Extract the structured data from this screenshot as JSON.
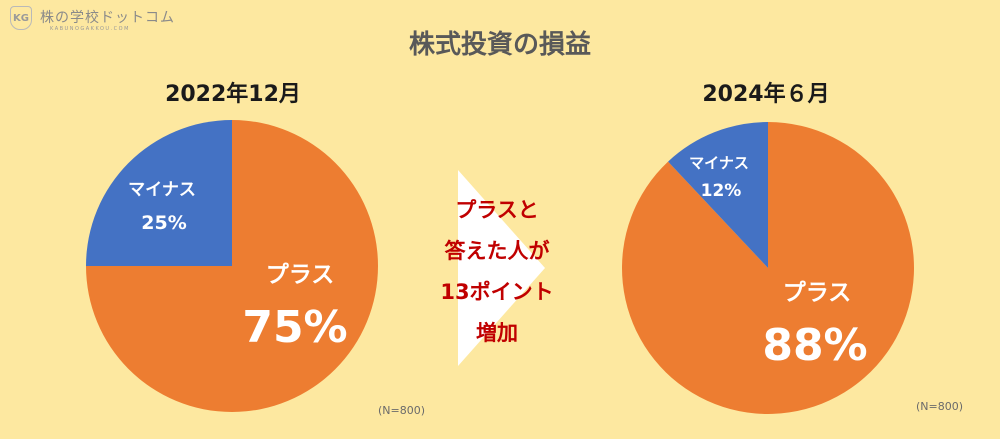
{
  "logo": {
    "name": "株の学校ドットコム",
    "subtitle": "KABUNOGAKKOU.COM",
    "mark": "KG"
  },
  "title": "株式投資の損益",
  "middle_text": [
    "プラスと",
    "答えた人が",
    "13ポイント",
    "増加"
  ],
  "colors": {
    "background": "#FDE8A0",
    "plus": "#ED7D31",
    "minus": "#4472C4",
    "arrow": "#FFFFFF",
    "middle_text": "#C00000"
  },
  "chart_data": [
    {
      "type": "pie",
      "title": "2022年12月",
      "categories": [
        "プラス",
        "マイナス"
      ],
      "values": [
        75,
        25
      ],
      "value_labels": [
        "75%",
        "25%"
      ],
      "note": "(N=800)"
    },
    {
      "type": "pie",
      "title": "2024年６月",
      "categories": [
        "プラス",
        "マイナス"
      ],
      "values": [
        88,
        12
      ],
      "value_labels": [
        "88%",
        "12%"
      ],
      "note": "(N=800)"
    }
  ]
}
